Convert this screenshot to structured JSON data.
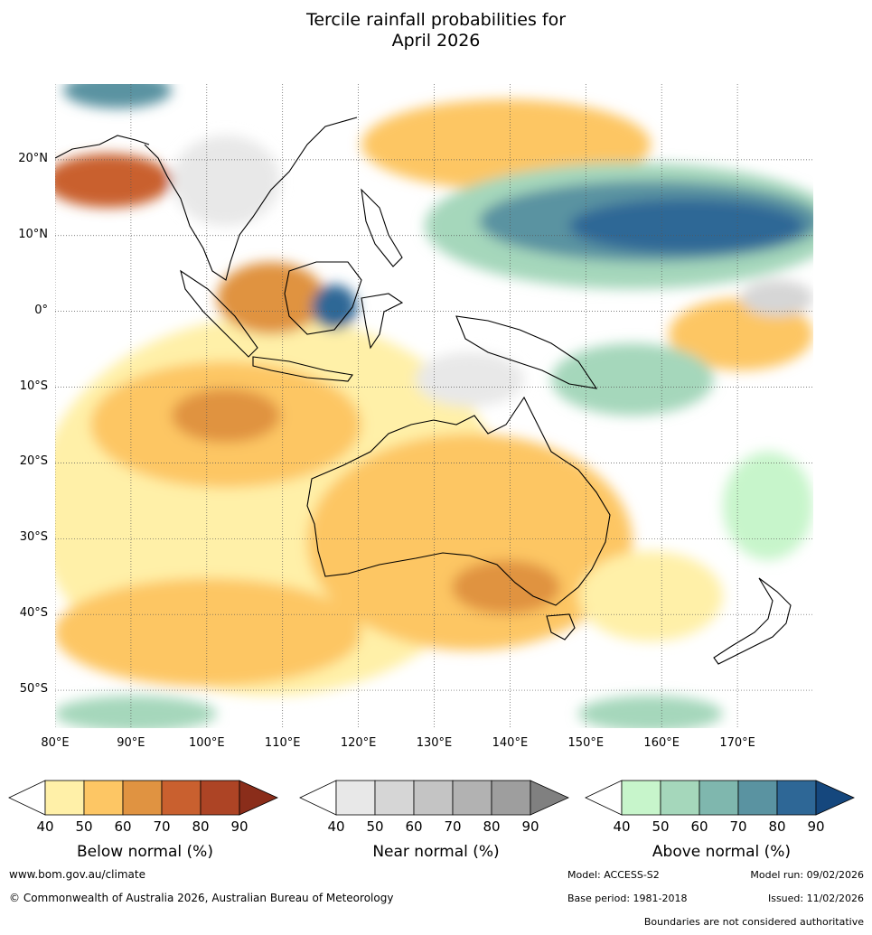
{
  "title": {
    "line1": "Tercile rainfall probabilities for",
    "line2": "April 2026"
  },
  "map": {
    "lon_range": [
      80,
      180
    ],
    "lat_range": [
      -55,
      30
    ],
    "lat_labels": [
      "20°N",
      "10°N",
      "0°",
      "10°S",
      "20°S",
      "30°S",
      "40°S",
      "50°S"
    ],
    "lat_values": [
      20,
      10,
      0,
      -10,
      -20,
      -30,
      -40,
      -50
    ],
    "lon_labels": [
      "80°E",
      "90°E",
      "100°E",
      "110°E",
      "120°E",
      "130°E",
      "140°E",
      "150°E",
      "160°E",
      "170°E"
    ],
    "lon_values": [
      80,
      90,
      100,
      110,
      120,
      130,
      140,
      150,
      160,
      170
    ],
    "colors": {
      "below": [
        "#fff0a8",
        "#fdc664",
        "#e09341",
        "#c9602f",
        "#ad4425",
        "#8a2d1a"
      ],
      "near": [
        "#e8e8e8",
        "#d6d6d6",
        "#c4c4c4",
        "#b2b2b2",
        "#9e9e9e",
        "#808080"
      ],
      "above": [
        "#c7f5cb",
        "#a5d7bb",
        "#7fb7ae",
        "#5a93a1",
        "#2e6796",
        "#15477d"
      ]
    }
  },
  "colorbars": [
    {
      "title": "Below normal (%)",
      "ticks": [
        "40",
        "50",
        "60",
        "70",
        "80",
        "90"
      ]
    },
    {
      "title": "Near normal (%)",
      "ticks": [
        "40",
        "50",
        "60",
        "70",
        "80",
        "90"
      ]
    },
    {
      "title": "Above normal (%)",
      "ticks": [
        "40",
        "50",
        "60",
        "70",
        "80",
        "90"
      ]
    }
  ],
  "footer": {
    "website": "www.bom.gov.au/climate",
    "copyright": "© Commonwealth of Australia 2026, Australian Bureau of Meteorology",
    "model": "Model: ACCESS-S2",
    "model_run": "Model run: 09/02/2026",
    "base_period": "Base period: 1981-2018",
    "issued": "Issued: 11/02/2026",
    "disclaimer": "Boundaries are not considered authoritative"
  }
}
